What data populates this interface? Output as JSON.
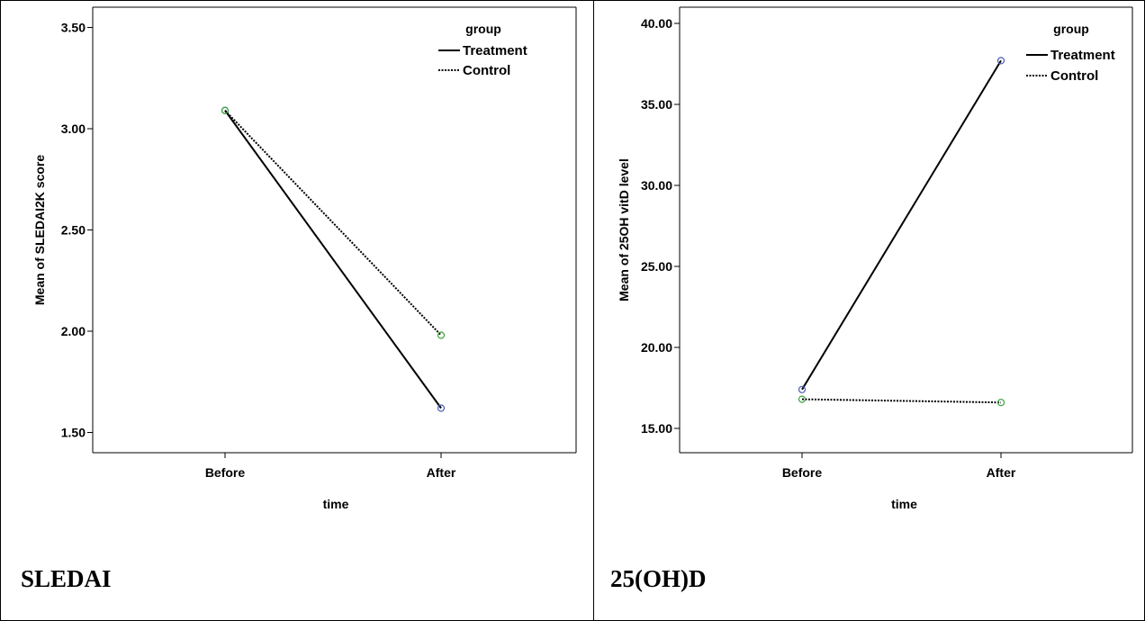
{
  "chart_data": [
    {
      "type": "line",
      "title": "",
      "xlabel": "time",
      "ylabel": "Mean of SLEDAI2K score",
      "categories": [
        "Before",
        "After"
      ],
      "ylim": [
        1.4,
        3.6
      ],
      "yticks": [
        1.5,
        2.0,
        2.5,
        3.0,
        3.5
      ],
      "yticklabels": [
        "1.50",
        "2.00",
        "2.50",
        "3.00",
        "3.50"
      ],
      "legend": {
        "title": "group",
        "position": "top-right"
      },
      "series": [
        {
          "name": "Treatment",
          "values": [
            3.09,
            1.62
          ],
          "line_style": "solid",
          "marker_color": "#4a5cb5"
        },
        {
          "name": "Control",
          "values": [
            3.09,
            1.98
          ],
          "line_style": "dotted",
          "marker_color": "#3aa33a"
        }
      ],
      "caption": "SLEDAI"
    },
    {
      "type": "line",
      "title": "",
      "xlabel": "time",
      "ylabel": "Mean of 25OH vitD level",
      "categories": [
        "Before",
        "After"
      ],
      "ylim": [
        13.5,
        41.0
      ],
      "yticks": [
        15,
        20,
        25,
        30,
        35,
        40
      ],
      "yticklabels": [
        "15.00",
        "20.00",
        "25.00",
        "30.00",
        "35.00",
        "40.00"
      ],
      "legend": {
        "title": "group",
        "position": "top-right"
      },
      "series": [
        {
          "name": "Treatment",
          "values": [
            17.4,
            37.7
          ],
          "line_style": "solid",
          "marker_color": "#4a5cb5"
        },
        {
          "name": "Control",
          "values": [
            16.8,
            16.6
          ],
          "line_style": "dotted",
          "marker_color": "#3aa33a"
        }
      ],
      "caption": "25(OH)D"
    }
  ]
}
